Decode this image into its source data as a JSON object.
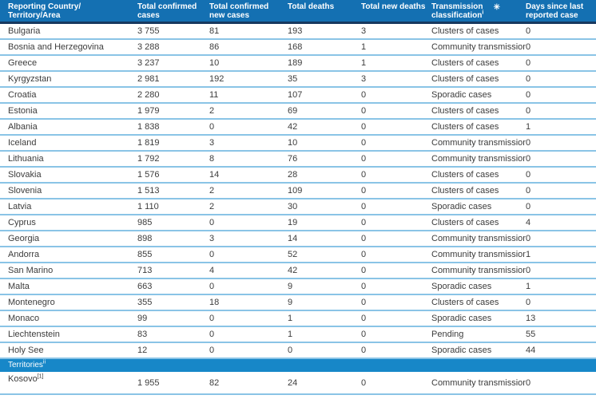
{
  "colors": {
    "header_bg": "#1470b2",
    "header_underline": "#17395f",
    "section_band_bg": "#1787c8",
    "row_divider": "#8ac4e6",
    "body_text": "#3c3c3c",
    "header_text": "#ffffff"
  },
  "table": {
    "columns": [
      {
        "id": "country",
        "label": "Reporting Country/ Territory/Area"
      },
      {
        "id": "total-confirmed-cases",
        "label": "Total confirmed cases"
      },
      {
        "id": "total-confirmed-new-cases",
        "label": "Total confirmed new cases"
      },
      {
        "id": "total-deaths",
        "label": "Total deaths"
      },
      {
        "id": "total-new-deaths",
        "label": "Total new deaths"
      },
      {
        "id": "transmission-classification",
        "label": "Transmission classification",
        "sup": "i",
        "star": "✳"
      },
      {
        "id": "days-since-last-reported-case",
        "label": "Days since last reported case"
      }
    ],
    "rows": [
      {
        "name": "Bulgaria",
        "total_confirmed_cases": "3 755",
        "total_confirmed_new_cases": "81",
        "total_deaths": "193",
        "total_new_deaths": "3",
        "transmission_classification": "Clusters of cases",
        "days_since_last_reported_case": "0"
      },
      {
        "name": "Bosnia and Herzegovina",
        "total_confirmed_cases": "3 288",
        "total_confirmed_new_cases": "86",
        "total_deaths": "168",
        "total_new_deaths": "1",
        "transmission_classification": "Community transmission",
        "days_since_last_reported_case": "0"
      },
      {
        "name": "Greece",
        "total_confirmed_cases": "3 237",
        "total_confirmed_new_cases": "10",
        "total_deaths": "189",
        "total_new_deaths": "1",
        "transmission_classification": "Clusters of cases",
        "days_since_last_reported_case": "0"
      },
      {
        "name": "Kyrgyzstan",
        "total_confirmed_cases": "2 981",
        "total_confirmed_new_cases": "192",
        "total_deaths": "35",
        "total_new_deaths": "3",
        "transmission_classification": "Clusters of cases",
        "days_since_last_reported_case": "0"
      },
      {
        "name": "Croatia",
        "total_confirmed_cases": "2 280",
        "total_confirmed_new_cases": "11",
        "total_deaths": "107",
        "total_new_deaths": "0",
        "transmission_classification": "Sporadic cases",
        "days_since_last_reported_case": "0"
      },
      {
        "name": "Estonia",
        "total_confirmed_cases": "1 979",
        "total_confirmed_new_cases": "2",
        "total_deaths": "69",
        "total_new_deaths": "0",
        "transmission_classification": "Clusters of cases",
        "days_since_last_reported_case": "0"
      },
      {
        "name": "Albania",
        "total_confirmed_cases": "1 838",
        "total_confirmed_new_cases": "0",
        "total_deaths": "42",
        "total_new_deaths": "0",
        "transmission_classification": "Clusters of cases",
        "days_since_last_reported_case": "1"
      },
      {
        "name": "Iceland",
        "total_confirmed_cases": "1 819",
        "total_confirmed_new_cases": "3",
        "total_deaths": "10",
        "total_new_deaths": "0",
        "transmission_classification": "Community transmission",
        "days_since_last_reported_case": "0"
      },
      {
        "name": "Lithuania",
        "total_confirmed_cases": "1 792",
        "total_confirmed_new_cases": "8",
        "total_deaths": "76",
        "total_new_deaths": "0",
        "transmission_classification": "Community transmission",
        "days_since_last_reported_case": "0"
      },
      {
        "name": "Slovakia",
        "total_confirmed_cases": "1 576",
        "total_confirmed_new_cases": "14",
        "total_deaths": "28",
        "total_new_deaths": "0",
        "transmission_classification": "Clusters of cases",
        "days_since_last_reported_case": "0"
      },
      {
        "name": "Slovenia",
        "total_confirmed_cases": "1 513",
        "total_confirmed_new_cases": "2",
        "total_deaths": "109",
        "total_new_deaths": "0",
        "transmission_classification": "Clusters of cases",
        "days_since_last_reported_case": "0"
      },
      {
        "name": "Latvia",
        "total_confirmed_cases": "1 110",
        "total_confirmed_new_cases": "2",
        "total_deaths": "30",
        "total_new_deaths": "0",
        "transmission_classification": "Sporadic cases",
        "days_since_last_reported_case": "0"
      },
      {
        "name": "Cyprus",
        "total_confirmed_cases": "985",
        "total_confirmed_new_cases": "0",
        "total_deaths": "19",
        "total_new_deaths": "0",
        "transmission_classification": "Clusters of cases",
        "days_since_last_reported_case": "4"
      },
      {
        "name": "Georgia",
        "total_confirmed_cases": "898",
        "total_confirmed_new_cases": "3",
        "total_deaths": "14",
        "total_new_deaths": "0",
        "transmission_classification": "Community transmission",
        "days_since_last_reported_case": "0"
      },
      {
        "name": "Andorra",
        "total_confirmed_cases": "855",
        "total_confirmed_new_cases": "0",
        "total_deaths": "52",
        "total_new_deaths": "0",
        "transmission_classification": "Community transmission",
        "days_since_last_reported_case": "1"
      },
      {
        "name": "San Marino",
        "total_confirmed_cases": "713",
        "total_confirmed_new_cases": "4",
        "total_deaths": "42",
        "total_new_deaths": "0",
        "transmission_classification": "Community transmission",
        "days_since_last_reported_case": "0"
      },
      {
        "name": "Malta",
        "total_confirmed_cases": "663",
        "total_confirmed_new_cases": "0",
        "total_deaths": "9",
        "total_new_deaths": "0",
        "transmission_classification": "Sporadic cases",
        "days_since_last_reported_case": "1"
      },
      {
        "name": "Montenegro",
        "total_confirmed_cases": "355",
        "total_confirmed_new_cases": "18",
        "total_deaths": "9",
        "total_new_deaths": "0",
        "transmission_classification": "Clusters of cases",
        "days_since_last_reported_case": "0"
      },
      {
        "name": "Monaco",
        "total_confirmed_cases": "99",
        "total_confirmed_new_cases": "0",
        "total_deaths": "1",
        "total_new_deaths": "0",
        "transmission_classification": "Sporadic cases",
        "days_since_last_reported_case": "13"
      },
      {
        "name": "Liechtenstein",
        "total_confirmed_cases": "83",
        "total_confirmed_new_cases": "0",
        "total_deaths": "1",
        "total_new_deaths": "0",
        "transmission_classification": "Pending",
        "days_since_last_reported_case": "55"
      },
      {
        "name": "Holy See",
        "total_confirmed_cases": "12",
        "total_confirmed_new_cases": "0",
        "total_deaths": "0",
        "total_new_deaths": "0",
        "transmission_classification": "Sporadic cases",
        "days_since_last_reported_case": "44"
      }
    ],
    "territories_section": {
      "label": "Territories",
      "sup": "ii",
      "rows": [
        {
          "name": "Kosovo",
          "sup": "[1]",
          "total_confirmed_cases": "1 955",
          "total_confirmed_new_cases": "82",
          "total_deaths": "24",
          "total_new_deaths": "0",
          "transmission_classification": "Community transmission",
          "days_since_last_reported_case": "0"
        }
      ]
    }
  }
}
